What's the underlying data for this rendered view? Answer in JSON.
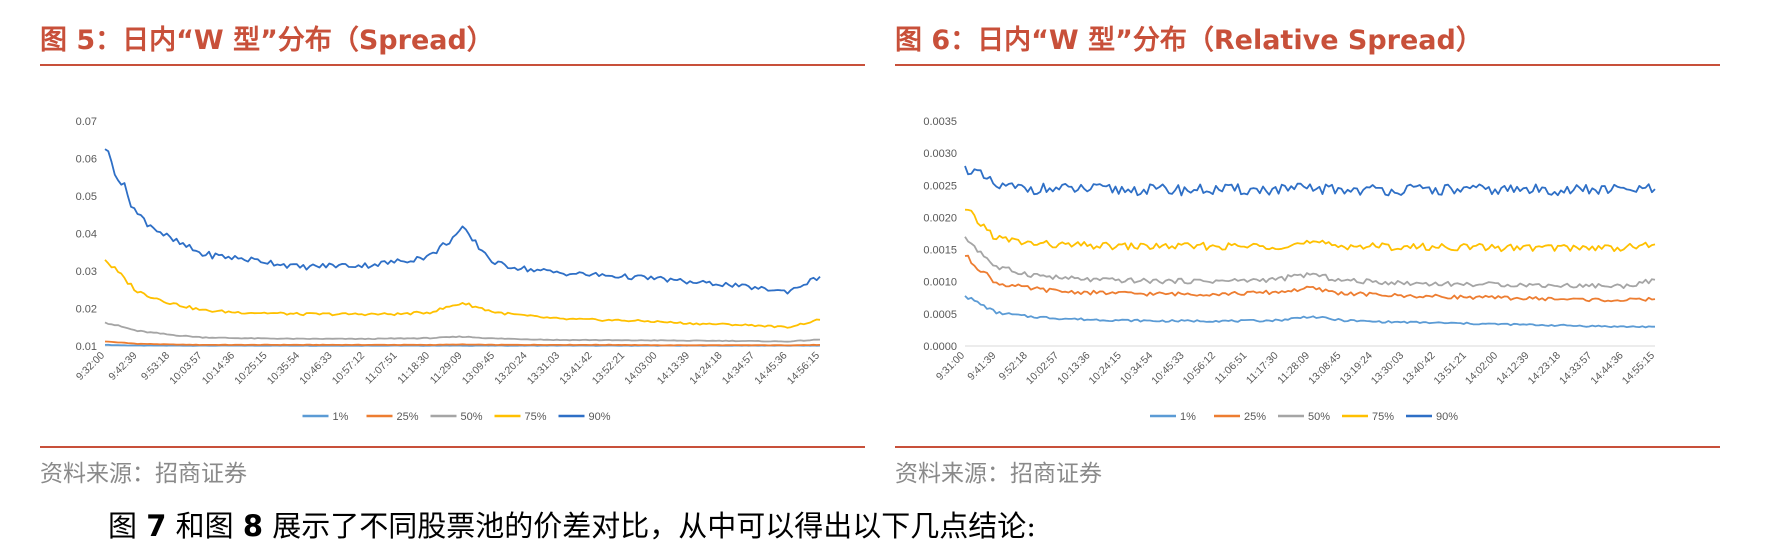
{
  "figures": [
    {
      "title": "图 5：日内“W 型”分布（Spread）",
      "source": "资料来源：招商证券"
    },
    {
      "title": "图 6：日内“W 型”分布（Relative Spread）",
      "source": "资料来源：招商证券"
    }
  ],
  "body_text": {
    "part1": "图 ",
    "num1": "7",
    "part2": " 和图 ",
    "num2": "8",
    "part3": " 展示了不同股票池的价差对比，从中可以得出以下几点结论:"
  },
  "chart_data": [
    {
      "type": "line",
      "title": "",
      "xlabel": "",
      "ylabel": "",
      "categories": [
        "9:32:00",
        "9:42:39",
        "9:53:18",
        "10:03:57",
        "10:14:36",
        "10:25:15",
        "10:35:54",
        "10:46:33",
        "10:57:12",
        "11:07:51",
        "11:18:30",
        "11:29:09",
        "13:09:45",
        "13:20:24",
        "13:31:03",
        "13:41:42",
        "13:52:21",
        "14:03:00",
        "14:13:39",
        "14:24:18",
        "14:34:57",
        "14:45:36",
        "14:56:15"
      ],
      "y_ticks": [
        "0.01",
        "0.02",
        "0.03",
        "0.04",
        "0.05",
        "0.06",
        "0.07"
      ],
      "ylim": [
        0.01,
        0.07
      ],
      "grid": false,
      "legend_position": "bottom",
      "series": [
        {
          "name": "1%",
          "color": "#5b9bd5",
          "values": [
            0.0103,
            0.0101,
            0.0101,
            0.0101,
            0.0101,
            0.0101,
            0.0101,
            0.0101,
            0.0101,
            0.0101,
            0.0101,
            0.0101,
            0.0101,
            0.0101,
            0.0101,
            0.0101,
            0.0101,
            0.0101,
            0.0101,
            0.0101,
            0.0101,
            0.0101,
            0.0101
          ]
        },
        {
          "name": "25%",
          "color": "#ed7d31",
          "values": [
            0.0112,
            0.0106,
            0.0104,
            0.0103,
            0.0103,
            0.0103,
            0.0103,
            0.0103,
            0.0103,
            0.0103,
            0.0103,
            0.0104,
            0.0103,
            0.0103,
            0.0103,
            0.0103,
            0.0103,
            0.0102,
            0.0102,
            0.0102,
            0.0102,
            0.0102,
            0.0103
          ]
        },
        {
          "name": "50%",
          "color": "#a5a5a5",
          "values": [
            0.0163,
            0.014,
            0.013,
            0.0123,
            0.0121,
            0.012,
            0.0119,
            0.0119,
            0.0119,
            0.012,
            0.0121,
            0.0125,
            0.012,
            0.0118,
            0.0116,
            0.0116,
            0.0115,
            0.0115,
            0.0114,
            0.0114,
            0.0113,
            0.0112,
            0.0117
          ]
        },
        {
          "name": "75%",
          "color": "#ffc000",
          "values": [
            0.033,
            0.0245,
            0.0215,
            0.0195,
            0.019,
            0.0188,
            0.0185,
            0.0185,
            0.0185,
            0.0185,
            0.019,
            0.0215,
            0.019,
            0.018,
            0.0172,
            0.017,
            0.0168,
            0.0165,
            0.016,
            0.0158,
            0.0155,
            0.015,
            0.017
          ]
        },
        {
          "name": "90%",
          "color": "#2e6fc6",
          "values": [
            0.0625,
            0.045,
            0.0385,
            0.0345,
            0.0335,
            0.0325,
            0.031,
            0.0315,
            0.0315,
            0.0325,
            0.034,
            0.041,
            0.032,
            0.0305,
            0.0295,
            0.029,
            0.0285,
            0.028,
            0.027,
            0.0265,
            0.0255,
            0.0245,
            0.0285
          ]
        }
      ]
    },
    {
      "type": "line",
      "title": "",
      "xlabel": "",
      "ylabel": "",
      "categories": [
        "9:31:00",
        "9:41:39",
        "9:52:18",
        "10:02:57",
        "10:13:36",
        "10:24:15",
        "10:34:54",
        "10:45:33",
        "10:56:12",
        "11:06:51",
        "11:17:30",
        "11:28:09",
        "13:08:45",
        "13:19:24",
        "13:30:03",
        "13:40:42",
        "13:51:21",
        "14:02:00",
        "14:12:39",
        "14:23:18",
        "14:33:57",
        "14:44:36",
        "14:55:15"
      ],
      "y_ticks": [
        "0.0000",
        "0.0005",
        "0.0010",
        "0.0015",
        "0.0020",
        "0.0025",
        "0.0030",
        "0.0035"
      ],
      "ylim": [
        0.0,
        0.0035
      ],
      "grid": false,
      "legend_position": "bottom",
      "series": [
        {
          "name": "1%",
          "color": "#5b9bd5",
          "values": [
            0.00078,
            0.00052,
            0.00046,
            0.00043,
            0.00041,
            0.0004,
            0.00039,
            0.00039,
            0.00039,
            0.00039,
            0.0004,
            0.00046,
            0.0004,
            0.00038,
            0.00037,
            0.00036,
            0.00035,
            0.00034,
            0.00033,
            0.00032,
            0.00031,
            0.0003,
            0.0003
          ]
        },
        {
          "name": "25%",
          "color": "#ed7d31",
          "values": [
            0.0014,
            0.00098,
            0.0009,
            0.00085,
            0.00083,
            0.00082,
            0.00081,
            0.00081,
            0.00081,
            0.00082,
            0.00084,
            0.0009,
            0.00082,
            0.0008,
            0.00078,
            0.00077,
            0.00076,
            0.00075,
            0.00074,
            0.00073,
            0.00072,
            0.00071,
            0.00073
          ]
        },
        {
          "name": "50%",
          "color": "#a5a5a5",
          "values": [
            0.0017,
            0.00122,
            0.00112,
            0.00106,
            0.00103,
            0.00102,
            0.00101,
            0.00101,
            0.00101,
            0.00102,
            0.00104,
            0.00112,
            0.00102,
            0.001,
            0.00098,
            0.00097,
            0.00096,
            0.00096,
            0.00095,
            0.00094,
            0.00094,
            0.00093,
            0.00103
          ]
        },
        {
          "name": "75%",
          "color": "#ffc000",
          "values": [
            0.00212,
            0.00168,
            0.0016,
            0.00157,
            0.00156,
            0.00155,
            0.00155,
            0.00155,
            0.00155,
            0.00155,
            0.00156,
            0.0016,
            0.00156,
            0.00155,
            0.00154,
            0.00154,
            0.00154,
            0.00153,
            0.00153,
            0.00153,
            0.00153,
            0.00153,
            0.00158
          ]
        },
        {
          "name": "90%",
          "color": "#2e6fc6",
          "values": [
            0.0028,
            0.00248,
            0.00245,
            0.00244,
            0.00244,
            0.00243,
            0.00243,
            0.00243,
            0.00243,
            0.00243,
            0.00243,
            0.00245,
            0.00243,
            0.00243,
            0.00243,
            0.00243,
            0.00243,
            0.00243,
            0.00243,
            0.00243,
            0.00243,
            0.00243,
            0.00244
          ]
        }
      ]
    }
  ]
}
